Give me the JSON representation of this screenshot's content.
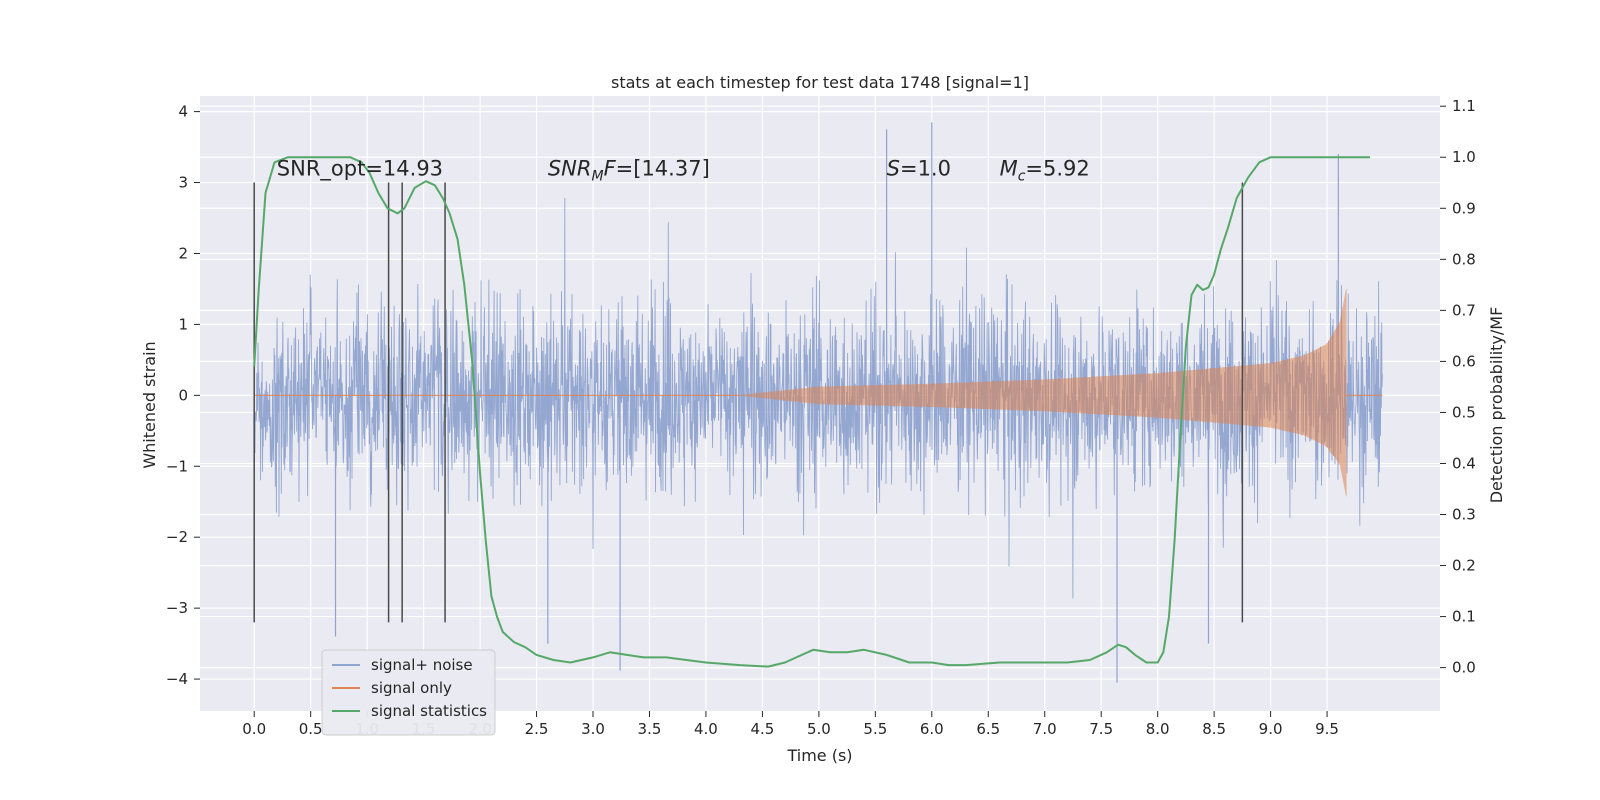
{
  "chart_data": {
    "type": "line",
    "title": "stats at each timestep for test data 1748 [signal=1]",
    "xlabel": "Time (s)",
    "ylabel": "Whitened strain",
    "y2label": "Detection probability/MF",
    "xlim": [
      -0.48,
      10.5
    ],
    "ylim": [
      -4.45,
      4.22
    ],
    "y2lim": [
      -0.085,
      1.12
    ],
    "xticks": [
      0.0,
      0.5,
      1.0,
      1.5,
      2.0,
      2.5,
      3.0,
      3.5,
      4.0,
      4.5,
      5.0,
      5.5,
      6.0,
      6.5,
      7.0,
      7.5,
      8.0,
      8.5,
      9.0,
      9.5
    ],
    "xtick_labels": [
      "0.0",
      "0.5",
      "1.0",
      "1.5",
      "2.0",
      "2.5",
      "3.0",
      "3.5",
      "4.0",
      "4.5",
      "5.0",
      "5.5",
      "6.0",
      "6.5",
      "7.0",
      "7.5",
      "8.0",
      "8.5",
      "9.0",
      "9.5"
    ],
    "yticks": [
      -4,
      -3,
      -2,
      -1,
      0,
      1,
      2,
      3,
      4
    ],
    "ytick_labels": [
      "−4",
      "−3",
      "−2",
      "−1",
      "0",
      "1",
      "2",
      "3",
      "4"
    ],
    "y2ticks": [
      0.0,
      0.1,
      0.2,
      0.3,
      0.4,
      0.5,
      0.6,
      0.7,
      0.8,
      0.9,
      1.0,
      1.1
    ],
    "y2tick_labels": [
      "0.0",
      "0.1",
      "0.2",
      "0.3",
      "0.4",
      "0.5",
      "0.6",
      "0.7",
      "0.8",
      "0.9",
      "1.0",
      "1.1"
    ],
    "grid": true,
    "legend_position": "lower-left",
    "background": "#eaeaf2",
    "annotations": [
      {
        "text": "SNR_opt=14.93",
        "x": 0.2,
        "y": 3.1
      },
      {
        "text": "SNR_MF=[14.37]",
        "x": 2.6,
        "y": 3.1
      },
      {
        "text": "S=1.0",
        "x": 5.6,
        "y": 3.1
      },
      {
        "text": "M_c=5.92",
        "x": 6.6,
        "y": 3.1
      }
    ],
    "vertical_lines": {
      "x": [
        0.0,
        1.19,
        1.31,
        1.69,
        8.75
      ],
      "ymin": -3.2,
      "ymax": 3.0,
      "color": "#4a4a4a"
    },
    "series": [
      {
        "name": "signal+ noise",
        "color": "#8fa3cf",
        "axis": "left",
        "x_range": [
          0.0,
          9.99
        ],
        "envelope_typical": 1.9,
        "peak_values": [
          {
            "x": 5.6,
            "y": 3.75
          },
          {
            "x": 6.0,
            "y": 3.85
          },
          {
            "x": 9.6,
            "y": 3.4
          },
          {
            "x": 0.72,
            "y": -3.4
          },
          {
            "x": 3.24,
            "y": -3.88
          },
          {
            "x": 7.64,
            "y": -4.05
          },
          {
            "x": 2.6,
            "y": -3.5
          },
          {
            "x": 8.45,
            "y": -3.5
          }
        ]
      },
      {
        "name": "signal only",
        "color": "#dd8452",
        "axis": "left",
        "x_range": [
          0.0,
          9.99
        ],
        "chirp_start": 4.3,
        "merger_time": 9.67,
        "amplitude_points": [
          {
            "x": 4.3,
            "y": 0.0
          },
          {
            "x": 5.0,
            "y": 0.12
          },
          {
            "x": 6.0,
            "y": 0.16
          },
          {
            "x": 7.0,
            "y": 0.22
          },
          {
            "x": 8.0,
            "y": 0.31
          },
          {
            "x": 8.5,
            "y": 0.38
          },
          {
            "x": 9.0,
            "y": 0.45
          },
          {
            "x": 9.3,
            "y": 0.56
          },
          {
            "x": 9.5,
            "y": 0.72
          },
          {
            "x": 9.62,
            "y": 1.05
          },
          {
            "x": 9.67,
            "y": 1.5
          }
        ]
      },
      {
        "name": "signal statistics",
        "color": "#55a868",
        "axis": "right",
        "x": [
          0.0,
          0.04,
          0.1,
          0.18,
          0.3,
          0.5,
          0.7,
          0.85,
          0.95,
          1.02,
          1.1,
          1.18,
          1.27,
          1.33,
          1.42,
          1.52,
          1.6,
          1.67,
          1.73,
          1.8,
          1.86,
          1.93,
          2.0,
          2.05,
          2.1,
          2.15,
          2.2,
          2.3,
          2.4,
          2.5,
          2.65,
          2.8,
          3.0,
          3.15,
          3.3,
          3.45,
          3.65,
          4.0,
          4.3,
          4.55,
          4.7,
          4.8,
          4.95,
          5.1,
          5.25,
          5.4,
          5.6,
          5.8,
          6.0,
          6.15,
          6.3,
          6.6,
          6.9,
          7.2,
          7.4,
          7.55,
          7.65,
          7.72,
          7.8,
          7.9,
          8.0,
          8.05,
          8.1,
          8.15,
          8.2,
          8.25,
          8.3,
          8.35,
          8.4,
          8.45,
          8.5,
          8.56,
          8.62,
          8.7,
          8.8,
          8.9,
          9.0,
          9.1,
          9.2,
          9.35,
          9.55,
          9.75,
          9.88
        ],
        "values": [
          0.59,
          0.74,
          0.93,
          0.99,
          1.0,
          1.0,
          1.0,
          1.0,
          0.99,
          0.97,
          0.93,
          0.9,
          0.89,
          0.9,
          0.94,
          0.953,
          0.945,
          0.92,
          0.89,
          0.84,
          0.75,
          0.6,
          0.38,
          0.25,
          0.14,
          0.1,
          0.07,
          0.05,
          0.04,
          0.025,
          0.015,
          0.01,
          0.02,
          0.03,
          0.025,
          0.02,
          0.02,
          0.01,
          0.005,
          0.002,
          0.01,
          0.02,
          0.035,
          0.03,
          0.03,
          0.035,
          0.025,
          0.01,
          0.01,
          0.005,
          0.005,
          0.01,
          0.01,
          0.01,
          0.015,
          0.03,
          0.045,
          0.04,
          0.025,
          0.01,
          0.01,
          0.03,
          0.1,
          0.25,
          0.45,
          0.63,
          0.73,
          0.75,
          0.74,
          0.745,
          0.77,
          0.82,
          0.86,
          0.92,
          0.96,
          0.99,
          1.0,
          1.0,
          1.0,
          1.0,
          1.0,
          1.0,
          1.0
        ]
      }
    ]
  }
}
